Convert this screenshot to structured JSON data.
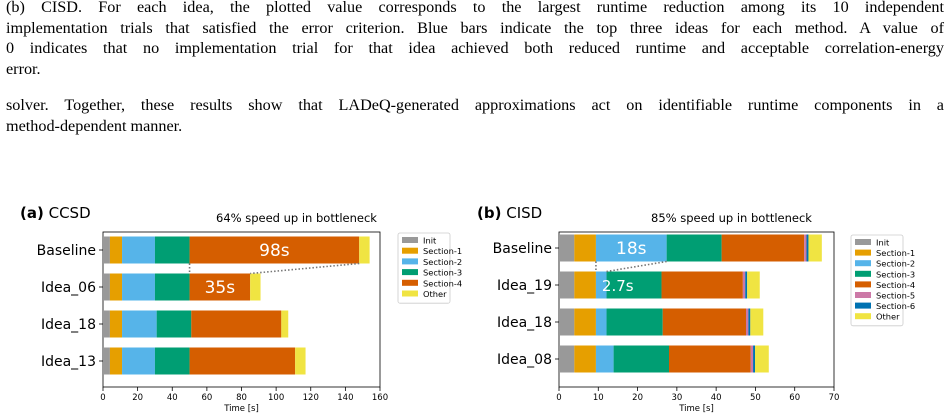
{
  "caption": {
    "lines": [
      "(b) CISD. For each idea, the plotted value corresponds to the largest runtime reduction among its 10 independent",
      "implementation trials that satisfied the error criterion. Blue bars indicate the top three ideas for each method. A value of",
      "0 indicates that no implementation trial for that idea achieved both reduced runtime and acceptable correlation-energy",
      "error."
    ]
  },
  "body_text": {
    "lines": [
      "solver. Together, these results show that LADeQ-generated approximations act on identifiable runtime components in a",
      "method-dependent manner."
    ]
  },
  "colors": {
    "Init": "#999999",
    "Section-1": "#E69F00",
    "Section-2": "#56B4E9",
    "Section-3": "#009E73",
    "Section-4": "#D55E00",
    "Section-5": "#CC79A7",
    "Section-6": "#0072B2",
    "Other": "#F0E442"
  },
  "chart_data": [
    {
      "type": "bar",
      "orientation": "horizontal",
      "stacked": true,
      "panel_label": "(a)",
      "panel_title": "CCSD",
      "annotation": "64% speed up in bottleneck",
      "categories": [
        "Baseline",
        "Idea_06",
        "Idea_18",
        "Idea_13"
      ],
      "xlabel": "Time [s]",
      "xlim": [
        0,
        160
      ],
      "xticks": [
        0,
        20,
        40,
        60,
        80,
        100,
        120,
        140,
        160
      ],
      "legend": [
        "Init",
        "Section-1",
        "Section-2",
        "Section-3",
        "Section-4",
        "Other"
      ],
      "legend_placement": "right",
      "series": [
        {
          "name": "Init",
          "values": [
            4,
            4,
            4,
            4
          ]
        },
        {
          "name": "Section-1",
          "values": [
            7,
            7,
            7,
            7
          ]
        },
        {
          "name": "Section-2",
          "values": [
            19,
            19,
            20,
            19
          ]
        },
        {
          "name": "Section-3",
          "values": [
            20,
            20,
            20,
            20
          ]
        },
        {
          "name": "Section-4",
          "values": [
            98,
            35,
            52,
            61
          ]
        },
        {
          "name": "Other",
          "values": [
            6,
            6,
            4,
            6
          ]
        }
      ],
      "bar_labels": [
        {
          "category": "Baseline",
          "series": "Section-4",
          "text": "98s"
        },
        {
          "category": "Idea_06",
          "series": "Section-4",
          "text": "35s"
        }
      ]
    },
    {
      "type": "bar",
      "orientation": "horizontal",
      "stacked": true,
      "panel_label": "(b)",
      "panel_title": "CISD",
      "annotation": "85% speed up in bottleneck",
      "categories": [
        "Baseline",
        "Idea_19",
        "Idea_18",
        "Idea_08"
      ],
      "xlabel": "Time [s]",
      "xlim": [
        0,
        70
      ],
      "xticks": [
        0,
        10,
        20,
        30,
        40,
        50,
        60,
        70
      ],
      "legend": [
        "Init",
        "Section-1",
        "Section-2",
        "Section-3",
        "Section-4",
        "Section-5",
        "Section-6",
        "Other"
      ],
      "legend_placement": "right",
      "series": [
        {
          "name": "Init",
          "values": [
            3.9,
            3.9,
            3.9,
            3.9
          ]
        },
        {
          "name": "Section-1",
          "values": [
            5.5,
            5.5,
            5.5,
            5.5
          ]
        },
        {
          "name": "Section-2",
          "values": [
            18,
            2.7,
            2.7,
            4.5
          ]
        },
        {
          "name": "Section-3",
          "values": [
            14,
            14,
            14.3,
            14.1
          ]
        },
        {
          "name": "Section-4",
          "values": [
            21,
            20.7,
            21.2,
            20.8
          ]
        },
        {
          "name": "Section-5",
          "values": [
            0.6,
            0.6,
            0.6,
            0.6
          ]
        },
        {
          "name": "Section-6",
          "values": [
            0.5,
            0.5,
            0.5,
            0.5
          ]
        },
        {
          "name": "Other",
          "values": [
            3.4,
            3.2,
            3.3,
            3.5
          ]
        }
      ],
      "bar_labels": [
        {
          "category": "Baseline",
          "series": "Section-2",
          "text": "18s"
        },
        {
          "category": "Idea_19",
          "series": "Section-2",
          "text": "2.7s"
        }
      ]
    }
  ]
}
